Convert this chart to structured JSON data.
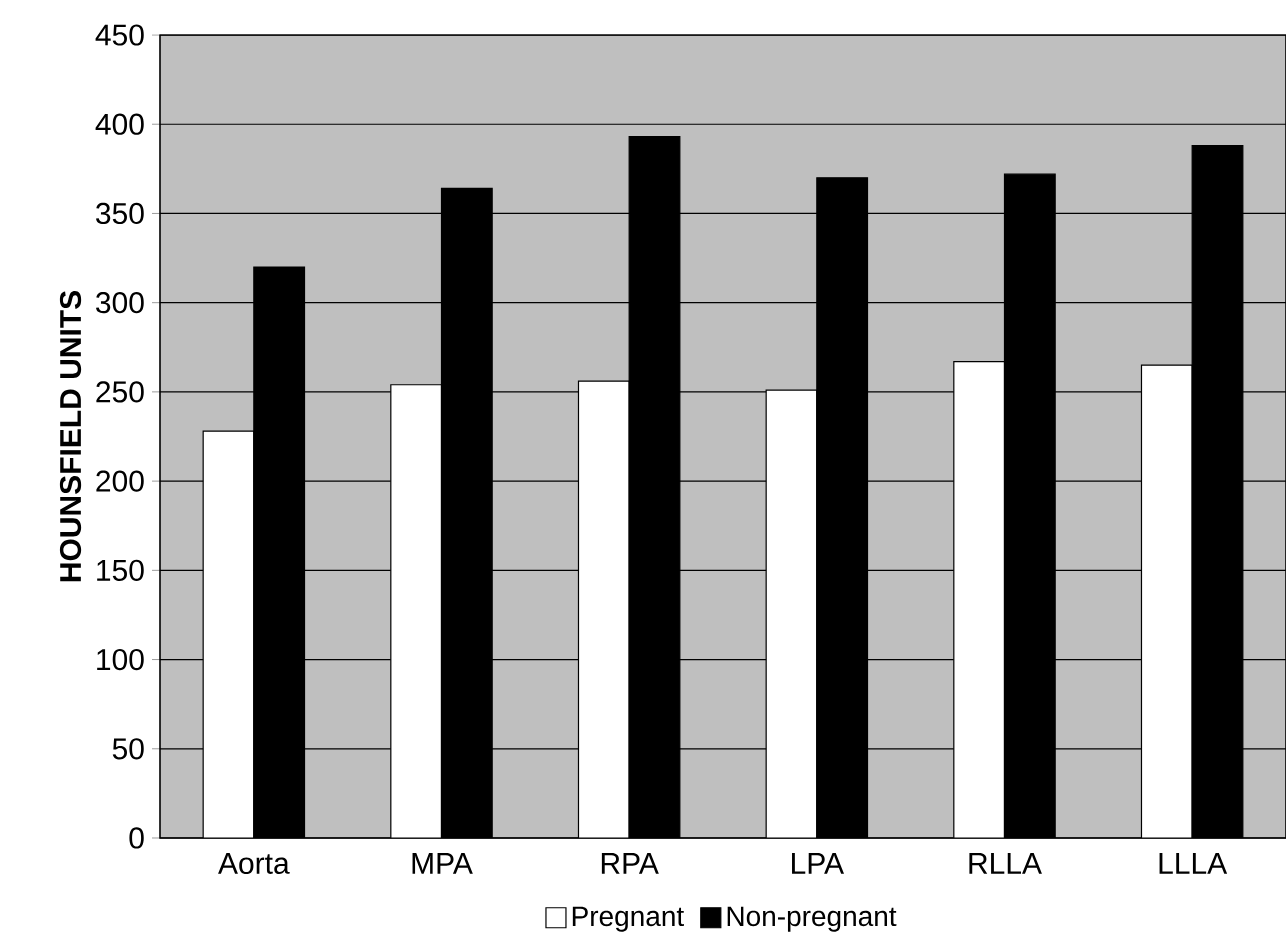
{
  "chart_data": {
    "type": "bar",
    "ylabel": "HOUNSFIELD UNITS",
    "categories": [
      "Aorta",
      "MPA",
      "RPA",
      "LPA",
      "RLLA",
      "LLLA"
    ],
    "series": [
      {
        "name": "Pregnant",
        "color": "#ffffff",
        "values": [
          228,
          254,
          256,
          251,
          267,
          265
        ]
      },
      {
        "name": "Non-pregnant",
        "color": "#000000",
        "values": [
          320,
          364,
          393,
          370,
          372,
          388
        ]
      }
    ],
    "ylim": [
      0,
      450
    ],
    "yticks": [
      0,
      50,
      100,
      150,
      200,
      250,
      300,
      350,
      400,
      450
    ],
    "grid": "y",
    "legend": "bottom"
  }
}
